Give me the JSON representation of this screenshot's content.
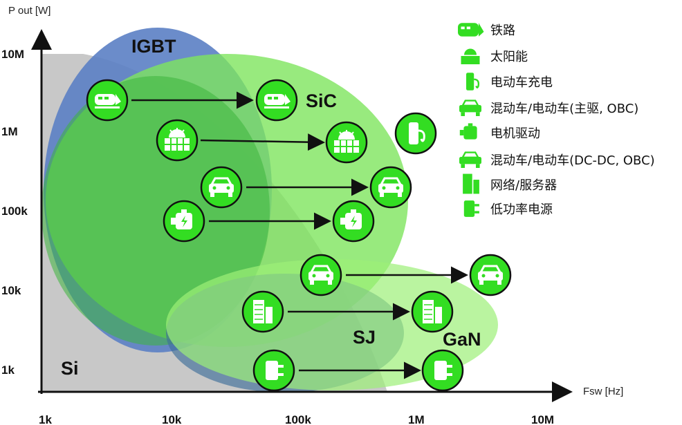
{
  "y_axis": {
    "label": "P out [W]",
    "ticks": [
      "10M",
      "1M",
      "100k",
      "10k",
      "1k"
    ]
  },
  "x_axis": {
    "label": "Fsw [Hz]",
    "ticks": [
      "1k",
      "10k",
      "100k",
      "1M",
      "10M"
    ]
  },
  "regions": {
    "si": "Si",
    "igbt": "IGBT",
    "sic": "SiC",
    "sj": "SJ",
    "gan": "GaN"
  },
  "colors": {
    "si": "#c8c8c8",
    "igbt": "#5b7fc4",
    "sic": "#7ee55e",
    "sic_dark": "#3cb43c",
    "sj": "#3f6f9a",
    "gan": "#9cef78",
    "icon": "#33dd22"
  },
  "legend": [
    {
      "icon": "train-icon",
      "label": "铁路"
    },
    {
      "icon": "solar-icon",
      "label": "太阳能"
    },
    {
      "icon": "ev-charger-icon",
      "label": "电动车充电"
    },
    {
      "icon": "car-icon",
      "label": "混动车/电动车(主驱, OBC)"
    },
    {
      "icon": "motor-icon",
      "label": "电机驱动"
    },
    {
      "icon": "car-icon",
      "label": "混动车/电动车(DC-DC, OBC)"
    },
    {
      "icon": "server-icon",
      "label": "网络/服务器"
    },
    {
      "icon": "plug-icon",
      "label": "低功率电源"
    }
  ]
}
